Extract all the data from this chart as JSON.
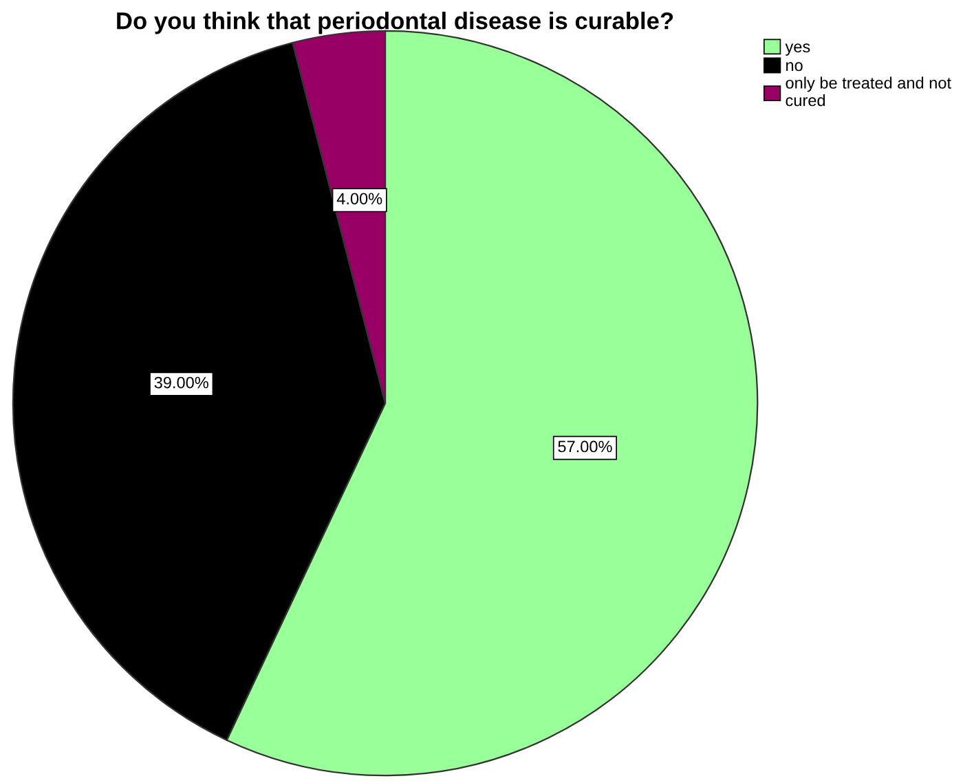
{
  "chart_data": {
    "type": "pie",
    "title": "Do you think that periodontal disease is curable?",
    "categories": [
      "yes",
      "no",
      "only be treated and not\ncured"
    ],
    "values": [
      57,
      39,
      4
    ],
    "value_labels": [
      "57.00%",
      "39.00%",
      "4.00%"
    ],
    "colors": [
      "#99ff99",
      "#000000",
      "#990066"
    ],
    "legend": "top right"
  }
}
